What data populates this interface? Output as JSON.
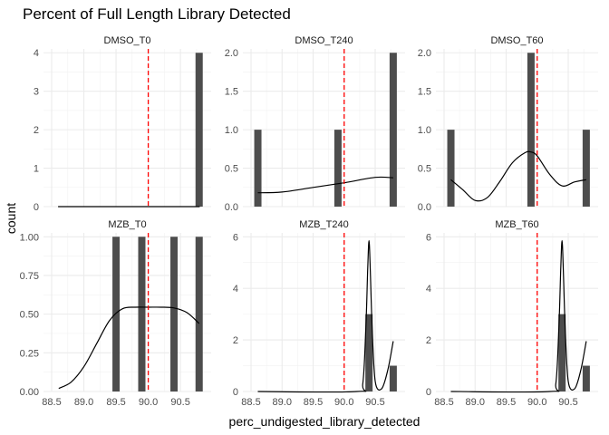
{
  "chart_data": {
    "type": "histogram",
    "title": "Percent of Full Length Library Detected",
    "xlabel": "perc_undigested_library_detected",
    "ylabel": "count",
    "xlim": [
      88.5,
      90.85
    ],
    "x_ticks": [
      "88.5",
      "89.0",
      "89.5",
      "90.0",
      "90.5"
    ],
    "x_tick_values": [
      88.5,
      89.0,
      89.5,
      90.0,
      90.5
    ],
    "reference_line": {
      "x": 90.0,
      "color": "#ff0000",
      "style": "dashed"
    },
    "bar_color": "#4d4d4d",
    "grid": true,
    "panels": [
      {
        "name": "DMSO_T0",
        "ylim": [
          0,
          4.1
        ],
        "y_ticks": [
          "0",
          "1",
          "2",
          "3",
          "4"
        ],
        "y_tick_values": [
          0,
          1,
          2,
          3,
          4
        ],
        "bars": [
          {
            "x": 90.79,
            "count": 4
          }
        ],
        "density": {
          "x": [
            88.6,
            90.8
          ],
          "y": [
            0,
            0
          ]
        }
      },
      {
        "name": "DMSO_T240",
        "ylim": [
          0,
          2.05
        ],
        "y_ticks": [
          "0.0",
          "0.5",
          "1.0",
          "1.5",
          "2.0"
        ],
        "y_tick_values": [
          0,
          0.5,
          1.0,
          1.5,
          2.0
        ],
        "bars": [
          {
            "x": 88.61,
            "count": 1
          },
          {
            "x": 89.9,
            "count": 1
          },
          {
            "x": 90.79,
            "count": 2
          }
        ],
        "density": {
          "x": [
            88.61,
            89.0,
            89.5,
            90.0,
            90.5,
            90.79
          ],
          "y": [
            0.18,
            0.19,
            0.25,
            0.31,
            0.38,
            0.375
          ]
        }
      },
      {
        "name": "DMSO_T60",
        "ylim": [
          0,
          2.05
        ],
        "y_ticks": [
          "0.0",
          "0.5",
          "1.0",
          "1.5",
          "2.0"
        ],
        "y_tick_values": [
          0,
          0.5,
          1.0,
          1.5,
          2.0
        ],
        "bars": [
          {
            "x": 88.61,
            "count": 1
          },
          {
            "x": 89.9,
            "count": 2
          },
          {
            "x": 90.79,
            "count": 1
          }
        ],
        "density": {
          "x": [
            88.61,
            88.8,
            89.0,
            89.2,
            89.4,
            89.6,
            89.8,
            89.9,
            90.0,
            90.2,
            90.4,
            90.6,
            90.79
          ],
          "y": [
            0.35,
            0.22,
            0.08,
            0.12,
            0.33,
            0.57,
            0.7,
            0.71,
            0.66,
            0.42,
            0.27,
            0.32,
            0.35
          ]
        }
      },
      {
        "name": "MZB_T0",
        "ylim": [
          0,
          1.025
        ],
        "y_ticks": [
          "0.00",
          "0.25",
          "0.50",
          "0.75",
          "1.00"
        ],
        "y_tick_values": [
          0,
          0.25,
          0.5,
          0.75,
          1.0
        ],
        "bars": [
          {
            "x": 89.5,
            "count": 1
          },
          {
            "x": 89.9,
            "count": 1
          },
          {
            "x": 90.4,
            "count": 1
          },
          {
            "x": 90.79,
            "count": 1
          }
        ],
        "density": {
          "x": [
            88.61,
            88.8,
            89.0,
            89.2,
            89.4,
            89.6,
            89.8,
            90.0,
            90.2,
            90.4,
            90.6,
            90.79
          ],
          "y": [
            0.02,
            0.06,
            0.16,
            0.31,
            0.46,
            0.535,
            0.545,
            0.545,
            0.545,
            0.54,
            0.51,
            0.44
          ]
        }
      },
      {
        "name": "MZB_T240",
        "ylim": [
          0,
          6.15
        ],
        "y_ticks": [
          "0",
          "2",
          "4",
          "6"
        ],
        "y_tick_values": [
          0,
          2,
          4,
          6
        ],
        "bars": [
          {
            "x": 90.4,
            "count": 3
          },
          {
            "x": 90.79,
            "count": 1
          }
        ],
        "density": {
          "x": [
            88.61,
            90.2,
            90.3,
            90.35,
            90.38,
            90.4,
            90.42,
            90.45,
            90.5,
            90.6,
            90.7,
            90.79
          ],
          "y": [
            0,
            0,
            0.3,
            2.5,
            4.8,
            5.85,
            4.8,
            2.5,
            0.4,
            0.1,
            0.8,
            1.95
          ]
        }
      },
      {
        "name": "MZB_T60",
        "ylim": [
          0,
          6.15
        ],
        "y_ticks": [
          "0",
          "2",
          "4",
          "6"
        ],
        "y_tick_values": [
          0,
          2,
          4,
          6
        ],
        "bars": [
          {
            "x": 90.4,
            "count": 3
          },
          {
            "x": 90.79,
            "count": 1
          }
        ],
        "density": {
          "x": [
            88.61,
            90.2,
            90.3,
            90.35,
            90.38,
            90.4,
            90.42,
            90.45,
            90.5,
            90.6,
            90.7,
            90.79
          ],
          "y": [
            0,
            0,
            0.3,
            2.5,
            4.8,
            5.85,
            4.8,
            2.5,
            0.4,
            0.1,
            0.8,
            1.95
          ]
        }
      }
    ]
  }
}
